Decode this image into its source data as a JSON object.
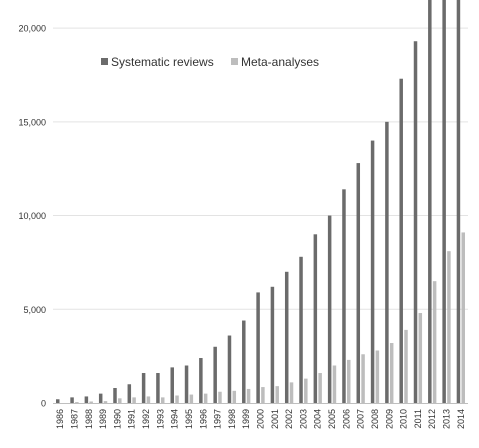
{
  "chart_data": {
    "type": "bar",
    "categories": [
      "1986",
      "1987",
      "1988",
      "1989",
      "1990",
      "1991",
      "1992",
      "1993",
      "1994",
      "1995",
      "1996",
      "1997",
      "1998",
      "1999",
      "2000",
      "2001",
      "2002",
      "2003",
      "2004",
      "2005",
      "2006",
      "2007",
      "2008",
      "2009",
      "2010",
      "2011",
      "2012",
      "2013",
      "2014"
    ],
    "series": [
      {
        "name": "Systematic reviews",
        "color": "#6b6b6b",
        "values": [
          200,
          300,
          350,
          500,
          800,
          1000,
          1600,
          1600,
          1900,
          2000,
          2400,
          3000,
          3600,
          4400,
          5900,
          6200,
          7000,
          7800,
          9000,
          10000,
          11400,
          12800,
          14000,
          15000,
          17300,
          19300,
          21500,
          21500,
          21500
        ]
      },
      {
        "name": "Meta-analyses",
        "color": "#bdbdbd",
        "values": [
          0,
          50,
          80,
          100,
          250,
          300,
          350,
          300,
          400,
          450,
          500,
          600,
          650,
          750,
          850,
          900,
          1100,
          1300,
          1600,
          2000,
          2300,
          2600,
          2800,
          3200,
          3900,
          4800,
          6500,
          8100,
          9100
        ]
      }
    ],
    "y_ticks": [
      "0",
      "5,000",
      "10,000",
      "15,000",
      "20,000"
    ],
    "ylim": [
      0,
      21500
    ],
    "legend_position": "top-left",
    "grid": true,
    "title": "",
    "xlabel": "",
    "ylabel": ""
  }
}
